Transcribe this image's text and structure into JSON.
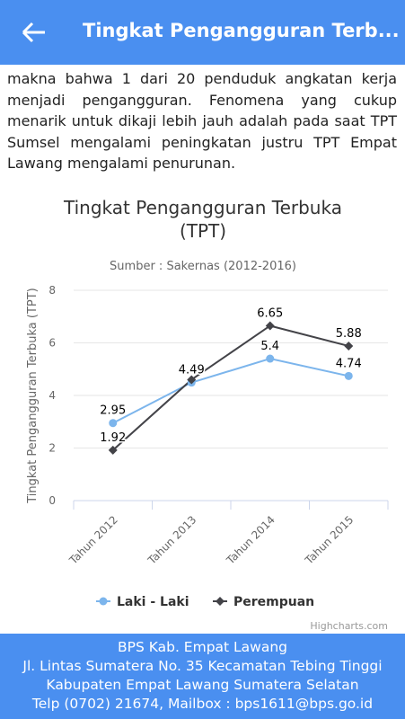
{
  "header": {
    "title": "Tingkat Pengangguran Terb..."
  },
  "paragraph": "makna bahwa 1 dari 20 penduduk angkatan kerja menjadi pengangguran. Fenomena yang cukup menarik untuk dikaji lebih jauh adalah pada saat TPT Sumsel mengalami peningkatan justru TPT Empat Lawang mengalami penurunan.",
  "chart_data": {
    "type": "line",
    "title": "Tingkat Pengangguran Terbuka (TPT)",
    "subtitle": "Sumber : Sakernas (2012-2016)",
    "y_label": "Tingkat Pengangguran Terbuka (TPT)",
    "categories": [
      "Tahun 2012",
      "Tahun 2013",
      "Tahun 2014",
      "Tahun 2015"
    ],
    "series": [
      {
        "name": "Laki - Laki",
        "color": "#7cb5ec",
        "marker": "circle",
        "values": [
          2.95,
          4.49,
          5.4,
          4.74
        ]
      },
      {
        "name": "Perempuan",
        "color": "#434348",
        "marker": "diamond",
        "values": [
          1.92,
          4.6,
          6.65,
          5.88
        ],
        "value_labels": [
          "1.92",
          null,
          "6.65",
          "5.88"
        ]
      }
    ],
    "ylim": [
      0,
      8
    ],
    "yticks": [
      0,
      2,
      4,
      6,
      8
    ],
    "grid": true,
    "legend": "bottom"
  },
  "credit": "Highcharts.com",
  "footer": {
    "lines": [
      "BPS Kab. Empat Lawang",
      "Jl. Lintas Sumatera No. 35 Kecamatan Tebing Tinggi",
      "Kabupaten Empat Lawang Sumatera Selatan",
      "Telp (0702) 21674, Mailbox : bps1611@bps.go.id"
    ]
  }
}
